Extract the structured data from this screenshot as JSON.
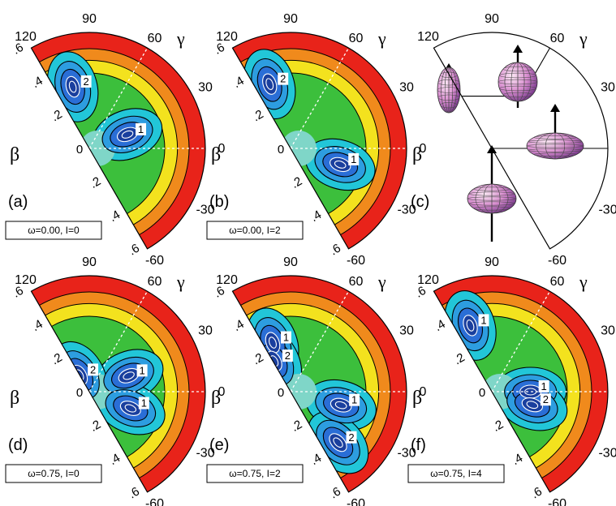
{
  "chart_data": [
    {
      "type": "polar-contour",
      "panel_label": "(a)",
      "legend_box": "ω=0.00, I=0",
      "angle_ticks": [
        "120",
        "90",
        "60",
        "30",
        "0",
        "-30",
        "-60"
      ],
      "radial_ticks": [
        ".6",
        ".4",
        ".2",
        "0",
        ".2",
        ".4",
        ".6"
      ],
      "axis_labels": {
        "beta": "β",
        "gamma": "γ"
      },
      "minima": [
        {
          "label": "2",
          "beta": 0.33,
          "gamma": 105
        },
        {
          "label": "1",
          "beta": 0.21,
          "gamma": 20
        }
      ]
    },
    {
      "type": "polar-contour",
      "panel_label": "(b)",
      "legend_box": "ω=0.00, I=2",
      "angle_ticks": [
        "120",
        "90",
        "60",
        "30",
        "0",
        "-30",
        "-60"
      ],
      "radial_ticks": [
        ".6",
        ".4",
        ".2",
        "0",
        ".2",
        ".4",
        ".6"
      ],
      "axis_labels": {
        "beta": "β",
        "gamma": "γ"
      },
      "minima": [
        {
          "label": "2",
          "beta": 0.35,
          "gamma": 108
        },
        {
          "label": "1",
          "beta": 0.27,
          "gamma": -18
        }
      ]
    },
    {
      "type": "diagram",
      "panel_label": "(c)",
      "angle_ticks": [
        "120",
        "90",
        "60",
        "30",
        "0",
        "-30",
        "-60"
      ],
      "axis_labels": {
        "beta": "β",
        "gamma": "γ"
      },
      "shapes": [
        "prolate-noncollective",
        "oblate-collective",
        "prolate-collective",
        "oblate-noncollective"
      ]
    },
    {
      "type": "polar-contour",
      "panel_label": "(d)",
      "legend_box": "ω=0.75, I=0",
      "angle_ticks": [
        "120",
        "90",
        "60",
        "30",
        "0",
        "-30",
        "-60"
      ],
      "radial_ticks": [
        ".6",
        ".4",
        ".2",
        "0",
        ".2",
        ".4",
        ".6"
      ],
      "axis_labels": {
        "beta": "β",
        "gamma": "γ"
      },
      "minima": [
        {
          "label": "1",
          "beta": 0.22,
          "gamma": 22
        },
        {
          "label": "2",
          "beta": 0.1,
          "gamma": 120
        },
        {
          "label": "1",
          "beta": 0.23,
          "gamma": -22
        }
      ]
    },
    {
      "type": "polar-contour",
      "panel_label": "(e)",
      "legend_box": "ω=0.75, I=2",
      "angle_ticks": [
        "120",
        "90",
        "60",
        "30",
        "0",
        "-30",
        "-60"
      ],
      "radial_ticks": [
        ".6",
        ".4",
        ".2",
        "0",
        ".2",
        ".4",
        ".6"
      ],
      "axis_labels": {
        "beta": "β",
        "gamma": "γ"
      },
      "minima": [
        {
          "label": "1",
          "beta": 0.27,
          "gamma": 110
        },
        {
          "label": "2",
          "beta": 0.18,
          "gamma": 118
        },
        {
          "label": "1",
          "beta": 0.27,
          "gamma": -15
        },
        {
          "label": "2",
          "beta": 0.36,
          "gamma": -47
        }
      ]
    },
    {
      "type": "polar-contour",
      "panel_label": "(f)",
      "legend_box": "ω=0.75, I=4",
      "angle_ticks": [
        "120",
        "90",
        "60",
        "30",
        "0",
        "-30",
        "-60"
      ],
      "radial_ticks": [
        ".6",
        ".4",
        ".2",
        "0",
        ".2",
        ".4",
        ".6"
      ],
      "axis_labels": {
        "beta": "β",
        "gamma": "γ"
      },
      "minima": [
        {
          "label": "1",
          "beta": 0.36,
          "gamma": 108
        },
        {
          "label": "1",
          "beta": 0.2,
          "gamma": 0
        },
        {
          "label": "2",
          "beta": 0.22,
          "gamma": -18
        }
      ]
    }
  ],
  "colors": {
    "high": "#e8231a",
    "orange": "#f08a1c",
    "yellow": "#f3e21e",
    "green": "#3cbf3c",
    "cyan": "#22c6d8",
    "blue": "#2a6ed6",
    "deep": "#1a3f9e"
  }
}
